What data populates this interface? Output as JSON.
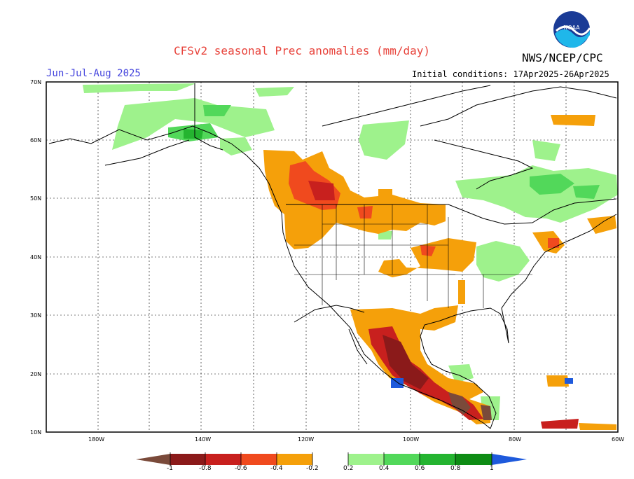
{
  "header": {
    "title": "CFSv2 seasonal Prec anomalies (mm/day)",
    "season": "Jun-Jul-Aug 2025",
    "agency": "NWS/NCEP/CPC",
    "initial_conditions": "Initial conditions: 17Apr2025-26Apr2025",
    "logo_text": "NOAA"
  },
  "map": {
    "lat_labels": [
      "70N",
      "60N",
      "50N",
      "40N",
      "30N",
      "20N",
      "10N"
    ],
    "lon_labels": [
      "180W",
      "140W",
      "120W",
      "100W",
      "80W",
      "60W"
    ]
  },
  "colorbar": {
    "labels": [
      "-1",
      "-0.8",
      "-0.6",
      "-0.4",
      "-0.2",
      "0.2",
      "0.4",
      "0.6",
      "0.8",
      "1"
    ],
    "colors": {
      "lt_-1": "#7a4a3a",
      "-1_-0.8": "#8b1a1a",
      "-0.8_-0.6": "#c8201e",
      "-0.6_-0.4": "#f04a1e",
      "-0.4_-0.2": "#f5a00a",
      "0.2_0.4": "#9ef28c",
      "0.4_0.6": "#52d85a",
      "0.6_0.8": "#24b430",
      "0.8_1": "#0e8c14",
      "gt_1": "#1e5adc"
    }
  }
}
